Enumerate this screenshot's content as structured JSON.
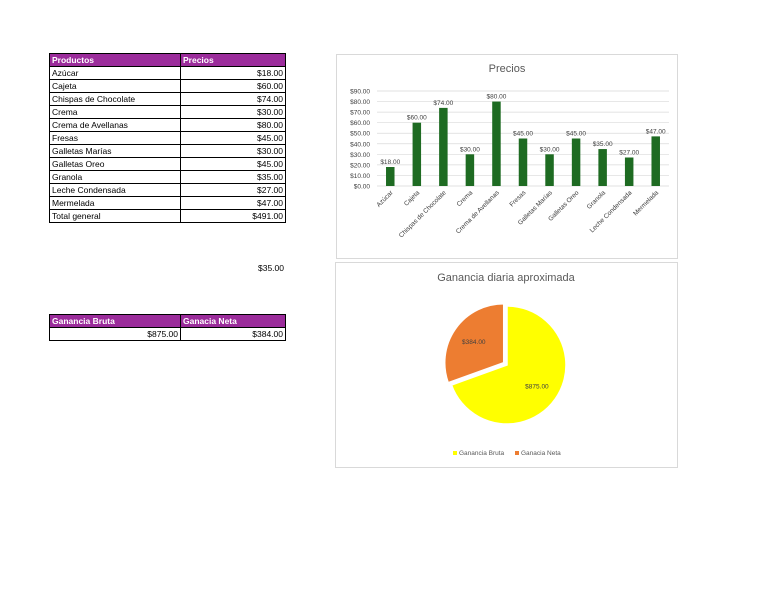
{
  "products_table": {
    "headers": [
      "Productos",
      "Precios"
    ],
    "rows": [
      [
        "Azúcar",
        "$18.00"
      ],
      [
        "Cajeta",
        "$60.00"
      ],
      [
        "Chispas de Chocolate",
        "$74.00"
      ],
      [
        "Crema",
        "$30.00"
      ],
      [
        "Crema de Avellanas",
        "$80.00"
      ],
      [
        "Fresas",
        "$45.00"
      ],
      [
        "Galletas Marías",
        "$30.00"
      ],
      [
        "Galletas Oreo",
        "$45.00"
      ],
      [
        "Granola",
        "$35.00"
      ],
      [
        "Leche Condensada",
        "$27.00"
      ],
      [
        "Mermelada",
        "$47.00"
      ]
    ],
    "total_label": "Total general",
    "total_value": "$491.00"
  },
  "loose_value": "$35.00",
  "profit_table": {
    "headers": [
      "Ganancia Bruta",
      "Ganacia Neta"
    ],
    "values": [
      "$875.00",
      "$384.00"
    ]
  },
  "colors": {
    "header": "#9b2c9b",
    "bar": "#1e6b22",
    "pie_bruta": "#ffff00",
    "pie_neta": "#ed7d31"
  },
  "chart_data": [
    {
      "type": "bar",
      "title": "Precios",
      "categories": [
        "Azúcar",
        "Cajeta",
        "Chispas de Chocolate",
        "Crema",
        "Crema de Avellanas",
        "Fresas",
        "Galletas Marías",
        "Galletas Oreo",
        "Granola",
        "Leche Condensada",
        "Mermelada"
      ],
      "values": [
        18,
        60,
        74,
        30,
        80,
        45,
        30,
        45,
        35,
        27,
        47
      ],
      "labels": [
        "$18.00",
        "$60.00",
        "$74.00",
        "$30.00",
        "$80.00",
        "$45.00",
        "$30.00",
        "$45.00",
        "$35.00",
        "$27.00",
        "$47.00"
      ],
      "yticks": [
        "$0.00",
        "$10.00",
        "$20.00",
        "$30.00",
        "$40.00",
        "$50.00",
        "$60.00",
        "$70.00",
        "$80.00",
        "$90.00"
      ],
      "ylim": [
        0,
        90
      ],
      "grid": true
    },
    {
      "type": "pie",
      "title": "Ganancia diaria aproximada",
      "categories": [
        "Ganancia Bruta",
        "Ganacia Neta"
      ],
      "values": [
        875,
        384
      ],
      "labels": [
        "$875.00",
        "$384.00"
      ],
      "legend": "bottom"
    }
  ]
}
